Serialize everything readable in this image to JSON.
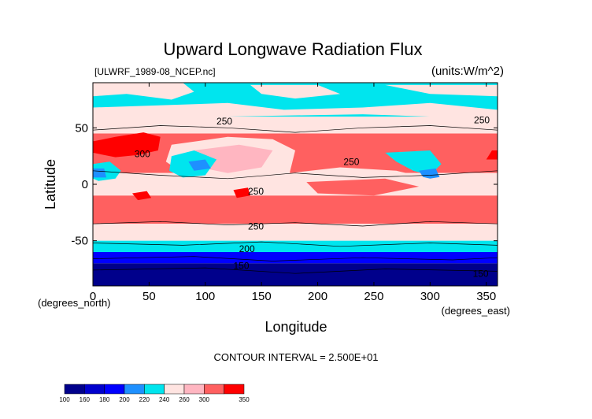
{
  "chart_data": {
    "type": "heatmap",
    "title": "Upward Longwave Radiation Flux",
    "file_label": "[ULWRF_1989-08_NCEP.nc]",
    "units_label": "(units:W/m^2)",
    "xlabel": "Longitude",
    "ylabel": "Latitude",
    "x_units": "(degrees_east)",
    "y_units": "(degrees_north)",
    "xlim": [
      0,
      360
    ],
    "ylim": [
      -90,
      90
    ],
    "x_ticks": [
      0,
      50,
      100,
      150,
      200,
      250,
      300,
      350
    ],
    "y_ticks": [
      -50,
      0,
      50
    ],
    "contour_interval_text": "CONTOUR INTERVAL = 2.500E+01",
    "contour_labels": [
      {
        "value": "300",
        "lon": 37,
        "lat": 24
      },
      {
        "value": "250",
        "lon": 110,
        "lat": 53
      },
      {
        "value": "250",
        "lon": 223,
        "lat": 17
      },
      {
        "value": "250",
        "lon": 138,
        "lat": -9
      },
      {
        "value": "250",
        "lon": 138,
        "lat": -40
      },
      {
        "value": "250",
        "lon": 339,
        "lat": 54
      },
      {
        "value": "200",
        "lon": 130,
        "lat": -60
      },
      {
        "value": "150",
        "lon": 125,
        "lat": -75
      },
      {
        "value": "150",
        "lon": 338,
        "lat": -82
      }
    ],
    "colorbar": {
      "labels": [
        "100",
        "160",
        "180",
        "200",
        "220",
        "240",
        "260",
        "300",
        "350"
      ],
      "colors": [
        "#00008b",
        "#0000cd",
        "#0000ff",
        "#1e90ff",
        "#00e5ee",
        "#ffe4e1",
        "#ffb6c1",
        "#ff6060",
        "#ff0000"
      ]
    },
    "bands": [
      {
        "lat_range": [
          60,
          90
        ],
        "level": "220-240",
        "description_color": "#00e5ee"
      },
      {
        "lat_range": [
          45,
          60
        ],
        "level": "240-260",
        "description_color": "#ffe4e1"
      },
      {
        "lat_range": [
          10,
          45
        ],
        "level": "260-300",
        "description_color": "#ff6060"
      },
      {
        "lat_range": [
          -10,
          10
        ],
        "level": "240-260",
        "description_color": "#ffe4e1"
      },
      {
        "lat_range": [
          -35,
          -10
        ],
        "level": "260-300",
        "description_color": "#ff6060"
      },
      {
        "lat_range": [
          -50,
          -35
        ],
        "level": "240-260",
        "description_color": "#ffe4e1"
      },
      {
        "lat_range": [
          -60,
          -50
        ],
        "level": "200-220",
        "description_color": "#00e5ee"
      },
      {
        "lat_range": [
          -70,
          -60
        ],
        "level": "160-200",
        "description_color": "#0000ff"
      },
      {
        "lat_range": [
          -90,
          -70
        ],
        "level": "100-160",
        "description_color": "#00008b"
      }
    ]
  }
}
